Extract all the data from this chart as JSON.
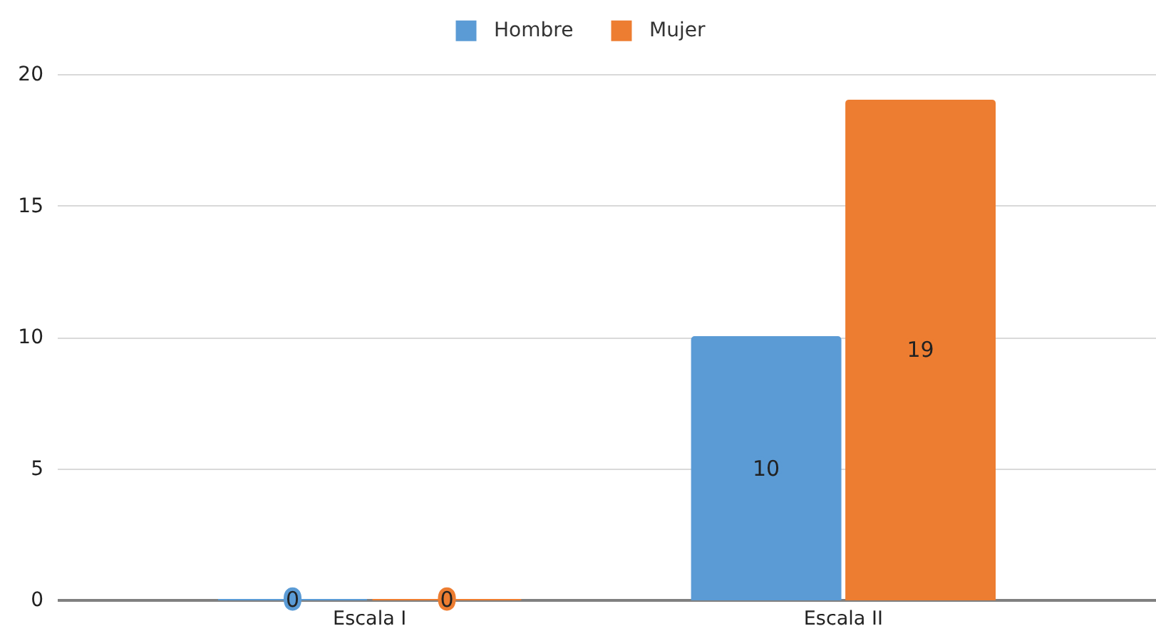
{
  "chart_data": {
    "type": "bar",
    "categories": [
      "Escala I",
      "Escala II"
    ],
    "series": [
      {
        "name": "Hombre",
        "color": "#5b9bd5",
        "values": [
          0,
          10
        ]
      },
      {
        "name": "Mujer",
        "color": "#ed7d31",
        "values": [
          0,
          19
        ]
      }
    ],
    "ylim": [
      0,
      20
    ],
    "yticks": [
      0,
      5,
      10,
      15,
      20
    ],
    "grid": "y",
    "legend": "top",
    "data_labels": true
  }
}
